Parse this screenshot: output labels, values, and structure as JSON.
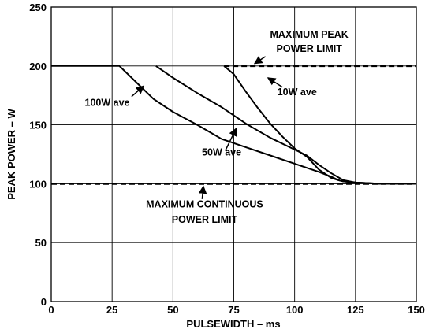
{
  "chart_data": {
    "type": "line",
    "title": "",
    "xlabel": "PULSEWIDTH – ms",
    "ylabel": "PEAK POWER – W",
    "xlim": [
      0,
      150
    ],
    "ylim": [
      0,
      250
    ],
    "x_ticks": [
      0,
      25,
      50,
      75,
      100,
      125,
      150
    ],
    "y_ticks": [
      0,
      50,
      100,
      150,
      200,
      250
    ],
    "x_tick_labels": [
      "0",
      "25",
      "50",
      "75",
      "100",
      "125",
      "150"
    ],
    "y_tick_labels": [
      "0",
      "50",
      "100",
      "150",
      "200",
      "250"
    ],
    "grid": true,
    "limit_lines": [
      {
        "name": "MAXIMUM PEAK POWER LIMIT",
        "y": 200,
        "x_range": [
          71,
          150
        ],
        "style": "dashed"
      },
      {
        "name": "MAXIMUM CONTINUOUS POWER LIMIT",
        "y": 100,
        "x_range": [
          0,
          150
        ],
        "style": "dashed"
      }
    ],
    "series": [
      {
        "name": "100W ave",
        "x": [
          0,
          28,
          32,
          37,
          42,
          50,
          60,
          70,
          80,
          90,
          100,
          110,
          115,
          118,
          120,
          125,
          135,
          150
        ],
        "y": [
          200,
          200,
          192,
          182,
          172,
          161,
          150,
          138,
          131,
          124,
          117,
          110,
          106,
          103,
          102,
          101,
          100,
          100
        ]
      },
      {
        "name": "50W ave",
        "x": [
          43,
          50,
          60,
          70,
          80,
          90,
          100,
          105,
          110,
          115,
          120,
          125,
          135,
          150
        ],
        "y": [
          200,
          190,
          177,
          165,
          151,
          139,
          129,
          124,
          116,
          109,
          103,
          101,
          100,
          100
        ]
      },
      {
        "name": "10W ave",
        "x": [
          71,
          75,
          80,
          85,
          90,
          95,
          100,
          105,
          110,
          115,
          118,
          120,
          125,
          135,
          150
        ],
        "y": [
          200,
          193,
          178,
          164,
          151,
          140,
          130,
          123,
          112,
          105,
          103,
          102,
          101,
          100,
          100
        ]
      }
    ],
    "annotations": [
      {
        "text": "MAXIMUM PEAK",
        "x": 106,
        "y": 224
      },
      {
        "text": "POWER LIMIT",
        "x": 106,
        "y": 212
      },
      {
        "text": "10W ave",
        "x": 101,
        "y": 175
      },
      {
        "text": "100W ave",
        "x": 23,
        "y": 166
      },
      {
        "text": "50W ave",
        "x": 70,
        "y": 124
      },
      {
        "text": "MAXIMUM CONTINUOUS",
        "x": 63,
        "y": 80
      },
      {
        "text": "POWER LIMIT",
        "x": 63,
        "y": 67
      }
    ],
    "arrows": [
      {
        "from": [
          88,
          208
        ],
        "to": [
          83.5,
          202
        ]
      },
      {
        "from": [
          95,
          182
        ],
        "to": [
          89,
          190
        ]
      },
      {
        "from": [
          33,
          174
        ],
        "to": [
          38,
          183
        ]
      },
      {
        "from": [
          71.5,
          128
        ],
        "to": [
          76,
          147
        ]
      },
      {
        "from": [
          62,
          87
        ],
        "to": [
          62.5,
          98
        ]
      }
    ]
  }
}
